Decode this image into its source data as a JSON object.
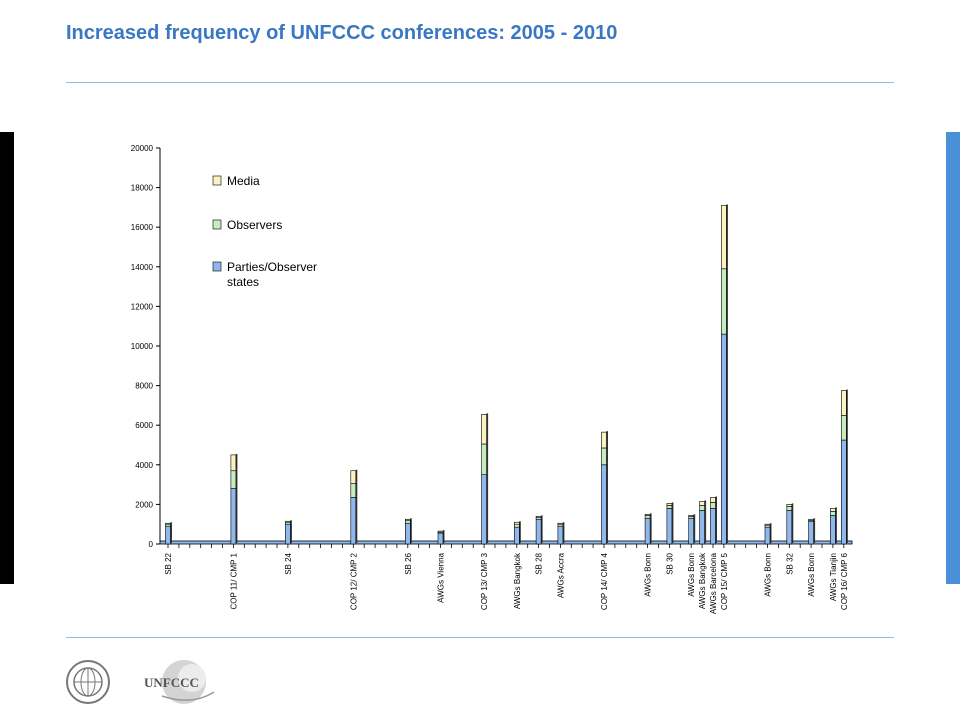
{
  "slide": {
    "title": "Increased frequency of UNFCCC conferences: 2005 - 2010"
  },
  "logos": {
    "un_emblem": "un-emblem",
    "unfccc_text": "UNFCCC"
  },
  "colors": {
    "title": "#3a78c3",
    "parties": "#8fb8ec",
    "observers": "#c6ecc0",
    "media": "#fbf2bf",
    "right_bar": "#4a90d9",
    "left_bar": "#000000"
  },
  "chart_data": {
    "type": "bar",
    "stacked": true,
    "ylim": [
      0,
      20000
    ],
    "yticks": [
      0,
      2000,
      4000,
      6000,
      8000,
      10000,
      12000,
      14000,
      16000,
      18000,
      20000
    ],
    "legend_position": "top-left",
    "grid": false,
    "categories": [
      "SB 22",
      "COP 11/ CMP 1",
      "SB 24",
      "COP 12/ CMP 2",
      "SB 26",
      "AWGs Vienna",
      "COP 13/ CMP 3",
      "AWGs Bangkok",
      "SB 28",
      "AWGs Accra",
      "COP 14/ CMP 4",
      "AWGs Bonn",
      "SB 30",
      "AWGs Bonn",
      "AWGs Bangkok",
      "AWGs Barcelona",
      "COP 15/ CMP 5",
      "AWGs Bonn",
      "SB 32",
      "AWGs Bonn",
      "AWGs Tianjin",
      "COP 16/ CMP 6"
    ],
    "series": [
      {
        "name": "Parties/Observer states",
        "values": [
          900,
          2800,
          1000,
          2350,
          1050,
          550,
          3500,
          850,
          1250,
          900,
          4000,
          1300,
          1800,
          1300,
          1700,
          1800,
          10600,
          850,
          1700,
          1150,
          1450,
          5250
        ]
      },
      {
        "name": "Observers",
        "values": [
          100,
          900,
          100,
          700,
          150,
          50,
          1550,
          150,
          100,
          100,
          850,
          150,
          150,
          100,
          250,
          300,
          3300,
          100,
          200,
          50,
          200,
          1250
        ]
      },
      {
        "name": "Media",
        "values": [
          50,
          800,
          50,
          650,
          50,
          50,
          1500,
          100,
          50,
          50,
          800,
          50,
          100,
          50,
          200,
          250,
          3200,
          50,
          100,
          50,
          150,
          1250
        ]
      }
    ]
  }
}
